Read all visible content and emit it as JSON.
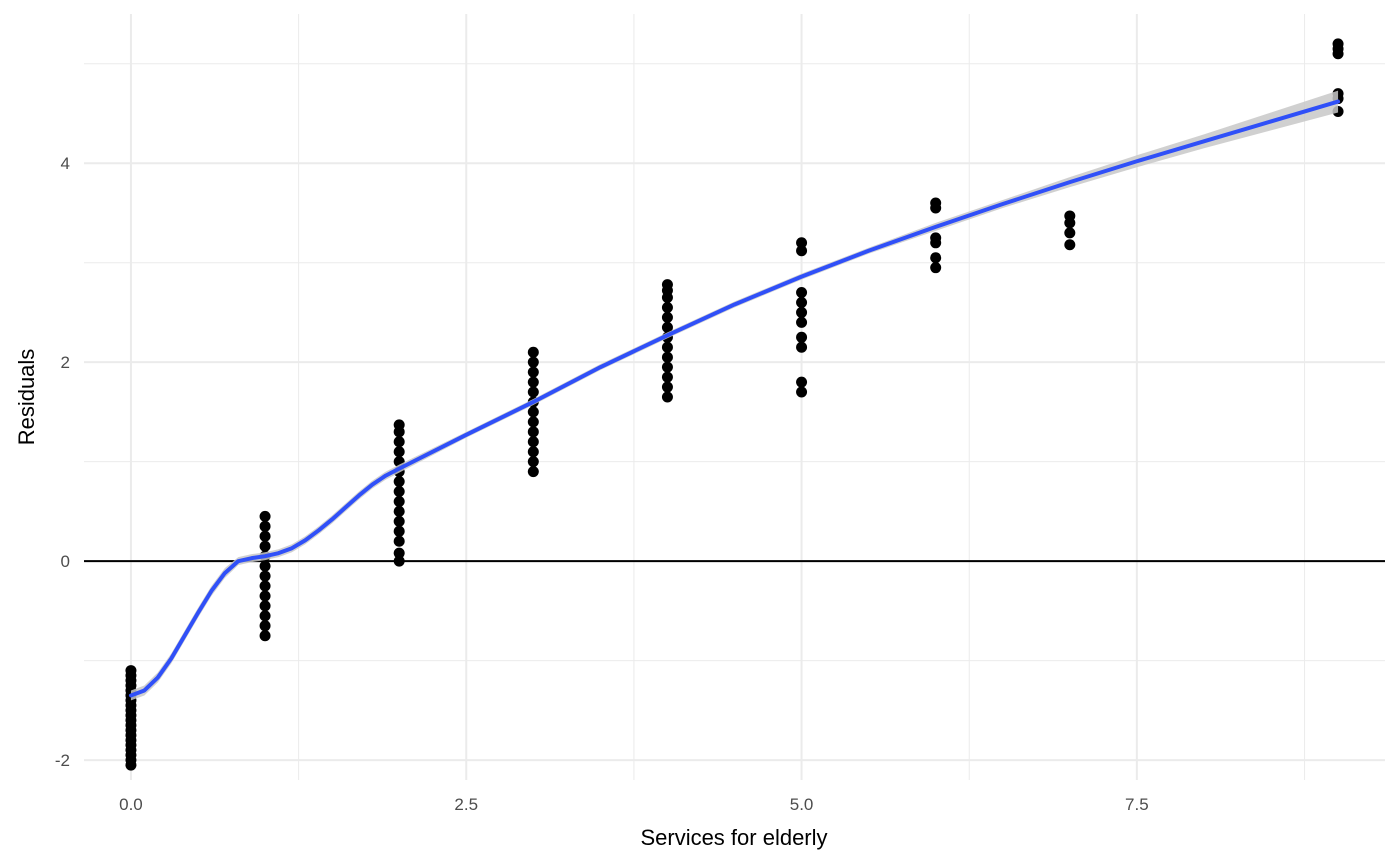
{
  "chart_data": {
    "type": "scatter",
    "title": "",
    "xlabel": "Services for elderly",
    "ylabel": "Residuals",
    "xlim": [
      -0.35,
      9.35
    ],
    "ylim": [
      -2.2,
      5.5
    ],
    "x_ticks": [
      0,
      2.5,
      5,
      7.5
    ],
    "x_tick_labels": [
      "0.0",
      "2.5",
      "5.0",
      "7.5"
    ],
    "y_ticks": [
      -2,
      0,
      2,
      4
    ],
    "y_tick_labels": [
      "-2",
      "0",
      "2",
      "4"
    ],
    "grid": true,
    "reference_line_y": 0,
    "colors": {
      "points": "#000000",
      "smooth": "#3050f8",
      "band": "#c8c8c8",
      "grid": "#ebebeb"
    },
    "points": [
      {
        "x": 0,
        "y": [
          -2.05,
          -2.0,
          -1.95,
          -1.9,
          -1.85,
          -1.8,
          -1.75,
          -1.7,
          -1.65,
          -1.6,
          -1.55,
          -1.5,
          -1.45,
          -1.4,
          -1.35,
          -1.3,
          -1.25,
          -1.2,
          -1.15,
          -1.1
        ]
      },
      {
        "x": 1,
        "y": [
          -0.75,
          -0.65,
          -0.55,
          -0.45,
          -0.35,
          -0.25,
          -0.15,
          -0.05,
          0.05,
          0.15,
          0.25,
          0.35,
          0.45
        ]
      },
      {
        "x": 2,
        "y": [
          0.0,
          0.08,
          0.2,
          0.3,
          0.4,
          0.5,
          0.6,
          0.7,
          0.8,
          0.9,
          1.0,
          1.1,
          1.2,
          1.3,
          1.37
        ]
      },
      {
        "x": 3,
        "y": [
          0.9,
          1.0,
          1.1,
          1.2,
          1.3,
          1.4,
          1.5,
          1.6,
          1.7,
          1.8,
          1.9,
          2.0,
          2.1
        ]
      },
      {
        "x": 4,
        "y": [
          1.65,
          1.75,
          1.85,
          1.95,
          2.05,
          2.15,
          2.25,
          2.35,
          2.45,
          2.55,
          2.65,
          2.72,
          2.78
        ]
      },
      {
        "x": 5,
        "y": [
          1.7,
          1.8,
          2.15,
          2.25,
          2.4,
          2.5,
          2.6,
          2.7,
          3.12,
          3.2
        ]
      },
      {
        "x": 6,
        "y": [
          2.95,
          3.05,
          3.2,
          3.25,
          3.55,
          3.6
        ]
      },
      {
        "x": 7,
        "y": [
          3.18,
          3.3,
          3.4,
          3.47
        ]
      },
      {
        "x": 9,
        "y": [
          4.52,
          4.65,
          4.7,
          5.1,
          5.15,
          5.2
        ]
      }
    ],
    "smooth_line": {
      "x": [
        0,
        0.1,
        0.2,
        0.3,
        0.4,
        0.5,
        0.6,
        0.7,
        0.8,
        0.9,
        1.0,
        1.1,
        1.2,
        1.3,
        1.4,
        1.5,
        1.6,
        1.7,
        1.8,
        1.9,
        2.0,
        2.5,
        3.0,
        3.5,
        4.0,
        4.5,
        5.0,
        5.5,
        6.0,
        6.5,
        7.0,
        7.5,
        8.0,
        8.5,
        9.0
      ],
      "y": [
        -1.35,
        -1.3,
        -1.17,
        -0.98,
        -0.75,
        -0.52,
        -0.3,
        -0.12,
        0.0,
        0.03,
        0.05,
        0.08,
        0.13,
        0.21,
        0.31,
        0.42,
        0.54,
        0.66,
        0.77,
        0.86,
        0.93,
        1.27,
        1.6,
        1.95,
        2.27,
        2.58,
        2.86,
        3.12,
        3.36,
        3.59,
        3.81,
        4.02,
        4.22,
        4.42,
        4.62
      ],
      "band_halfwidth": [
        0.05,
        0.05,
        0.05,
        0.05,
        0.05,
        0.05,
        0.05,
        0.05,
        0.04,
        0.04,
        0.04,
        0.04,
        0.04,
        0.04,
        0.04,
        0.04,
        0.04,
        0.04,
        0.04,
        0.04,
        0.04,
        0.03,
        0.03,
        0.03,
        0.03,
        0.03,
        0.03,
        0.03,
        0.04,
        0.04,
        0.05,
        0.06,
        0.07,
        0.09,
        0.11
      ]
    }
  }
}
